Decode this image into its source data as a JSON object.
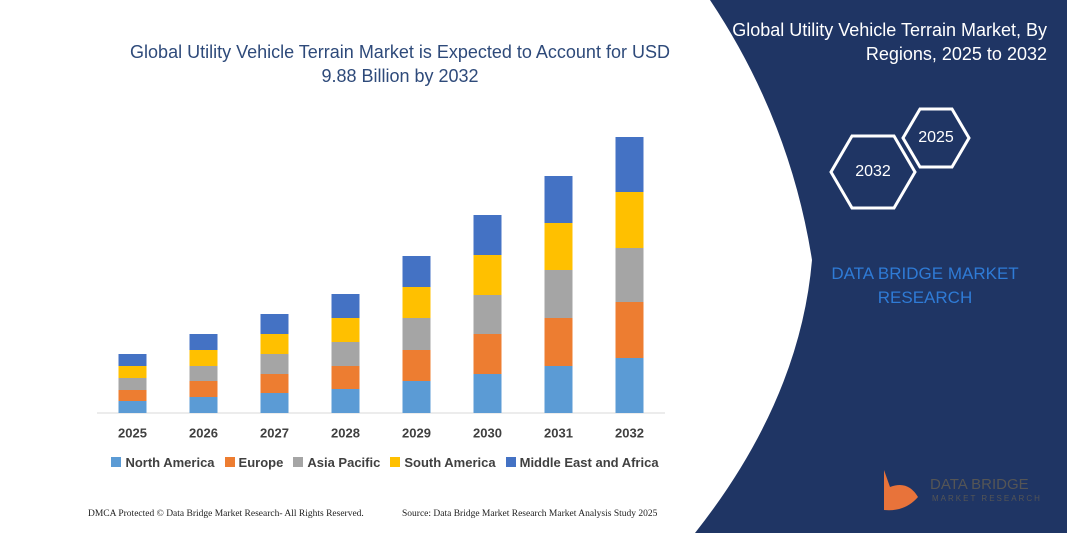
{
  "chart_data": {
    "type": "bar",
    "stacked": true,
    "title": "Global Utility Vehicle Terrain Market is Expected to Account for USD 9.88 Billion by 2032",
    "categories": [
      "2025",
      "2026",
      "2027",
      "2028",
      "2029",
      "2030",
      "2031",
      "2032"
    ],
    "series": [
      {
        "name": "North America",
        "color": "#5b9bd5",
        "values": [
          12,
          16,
          20,
          24,
          32,
          39,
          47,
          55
        ]
      },
      {
        "name": "Europe",
        "color": "#ed7d31",
        "values": [
          11,
          16,
          19,
          23,
          31,
          40,
          48,
          56
        ]
      },
      {
        "name": "Asia Pacific",
        "color": "#a5a5a5",
        "values": [
          12,
          15,
          20,
          24,
          32,
          39,
          48,
          54
        ]
      },
      {
        "name": "South America",
        "color": "#ffc000",
        "values": [
          12,
          16,
          20,
          24,
          31,
          40,
          47,
          56
        ]
      },
      {
        "name": "Middle East and Africa",
        "color": "#4472c4",
        "values": [
          12,
          16,
          20,
          24,
          31,
          40,
          47,
          55
        ]
      }
    ],
    "ylim": [
      0,
      290
    ],
    "legend": "bottom"
  },
  "panel": {
    "title": "Global Utility Vehicle Terrain Market, By Regions, 2025 to 2032",
    "hexagons": [
      "2032",
      "2025"
    ],
    "brand": "DATA BRIDGE MARKET RESEARCH"
  },
  "logo": {
    "name": "DATA BRIDGE",
    "tagline": "MARKET RESEARCH"
  },
  "footer": {
    "left": "DMCA Protected © Data Bridge Market Research- All Rights Reserved.",
    "right": "Source: Data Bridge Market Research Market Analysis Study 2025"
  }
}
